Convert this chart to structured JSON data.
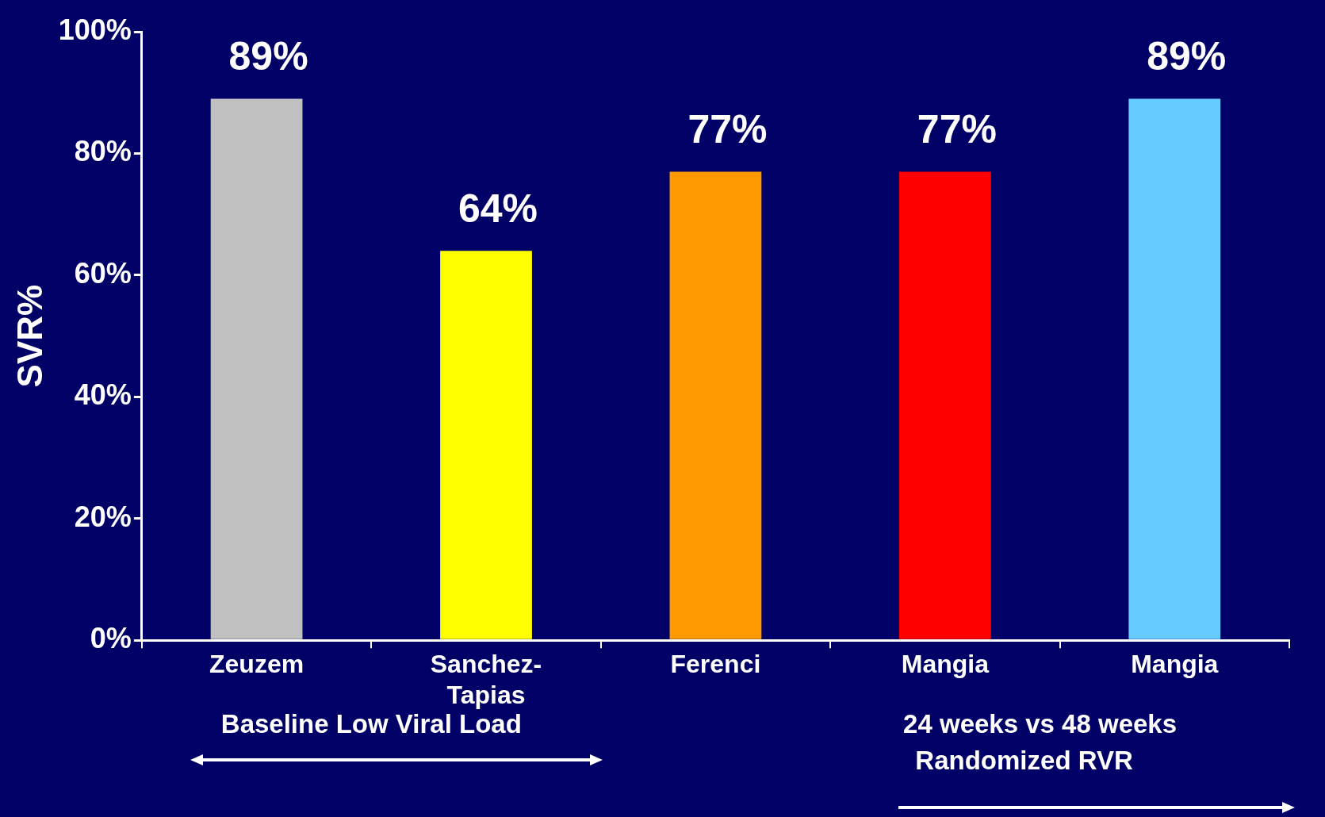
{
  "chart_data": {
    "type": "bar",
    "ylabel": "SVR%",
    "categories": [
      "Zeuzem",
      "Sanchez-Tapias",
      "Ferenci",
      "Mangia",
      "Mangia"
    ],
    "values": [
      89,
      64,
      77,
      77,
      89
    ],
    "colors": [
      "#c0c0c0",
      "#ffff00",
      "#ff9900",
      "#ff0000",
      "#66ccff"
    ],
    "ylim": [
      0,
      100
    ],
    "yticks": [
      {
        "value": 0,
        "label": "0%"
      },
      {
        "value": 20,
        "label": "20%"
      },
      {
        "value": 40,
        "label": "40%"
      },
      {
        "value": 60,
        "label": "60%"
      },
      {
        "value": 80,
        "label": "80%"
      },
      {
        "value": 100,
        "label": "100%"
      }
    ],
    "value_labels": [
      "89%",
      "64%",
      "77%",
      "77%",
      "89%"
    ],
    "annotations": [
      "Baseline Low Viral Load",
      "24 weeks vs 48 weeks\nRandomized RVR"
    ],
    "grid": false,
    "legend": false
  }
}
